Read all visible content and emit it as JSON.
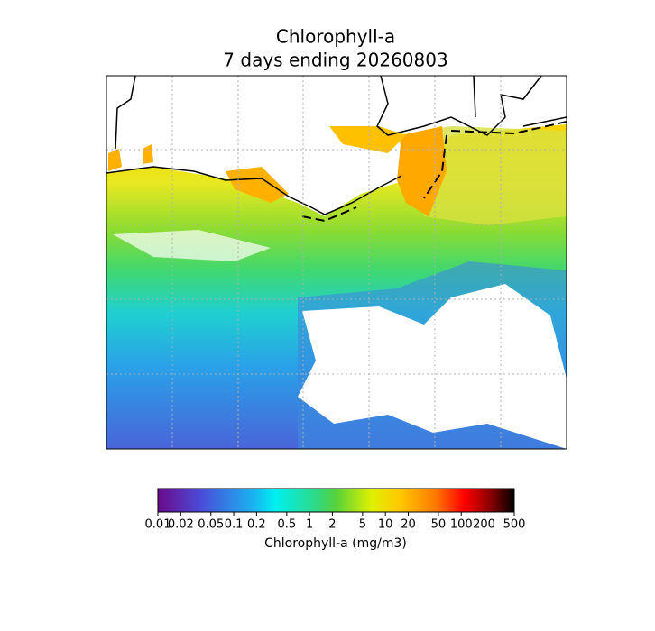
{
  "chart_data": {
    "type": "map",
    "title": "Chlorophyll-a",
    "subtitle": "7 days ending 20260803",
    "colorbar": {
      "label": "Chlorophyll-a (mg/m3)",
      "clim": [
        0.01,
        500
      ],
      "log_scale": true,
      "ticks": [
        0.01,
        0.02,
        0.05,
        0.1,
        0.2,
        0.5,
        1,
        2,
        5,
        10,
        20,
        50,
        100,
        200,
        500
      ]
    }
  }
}
